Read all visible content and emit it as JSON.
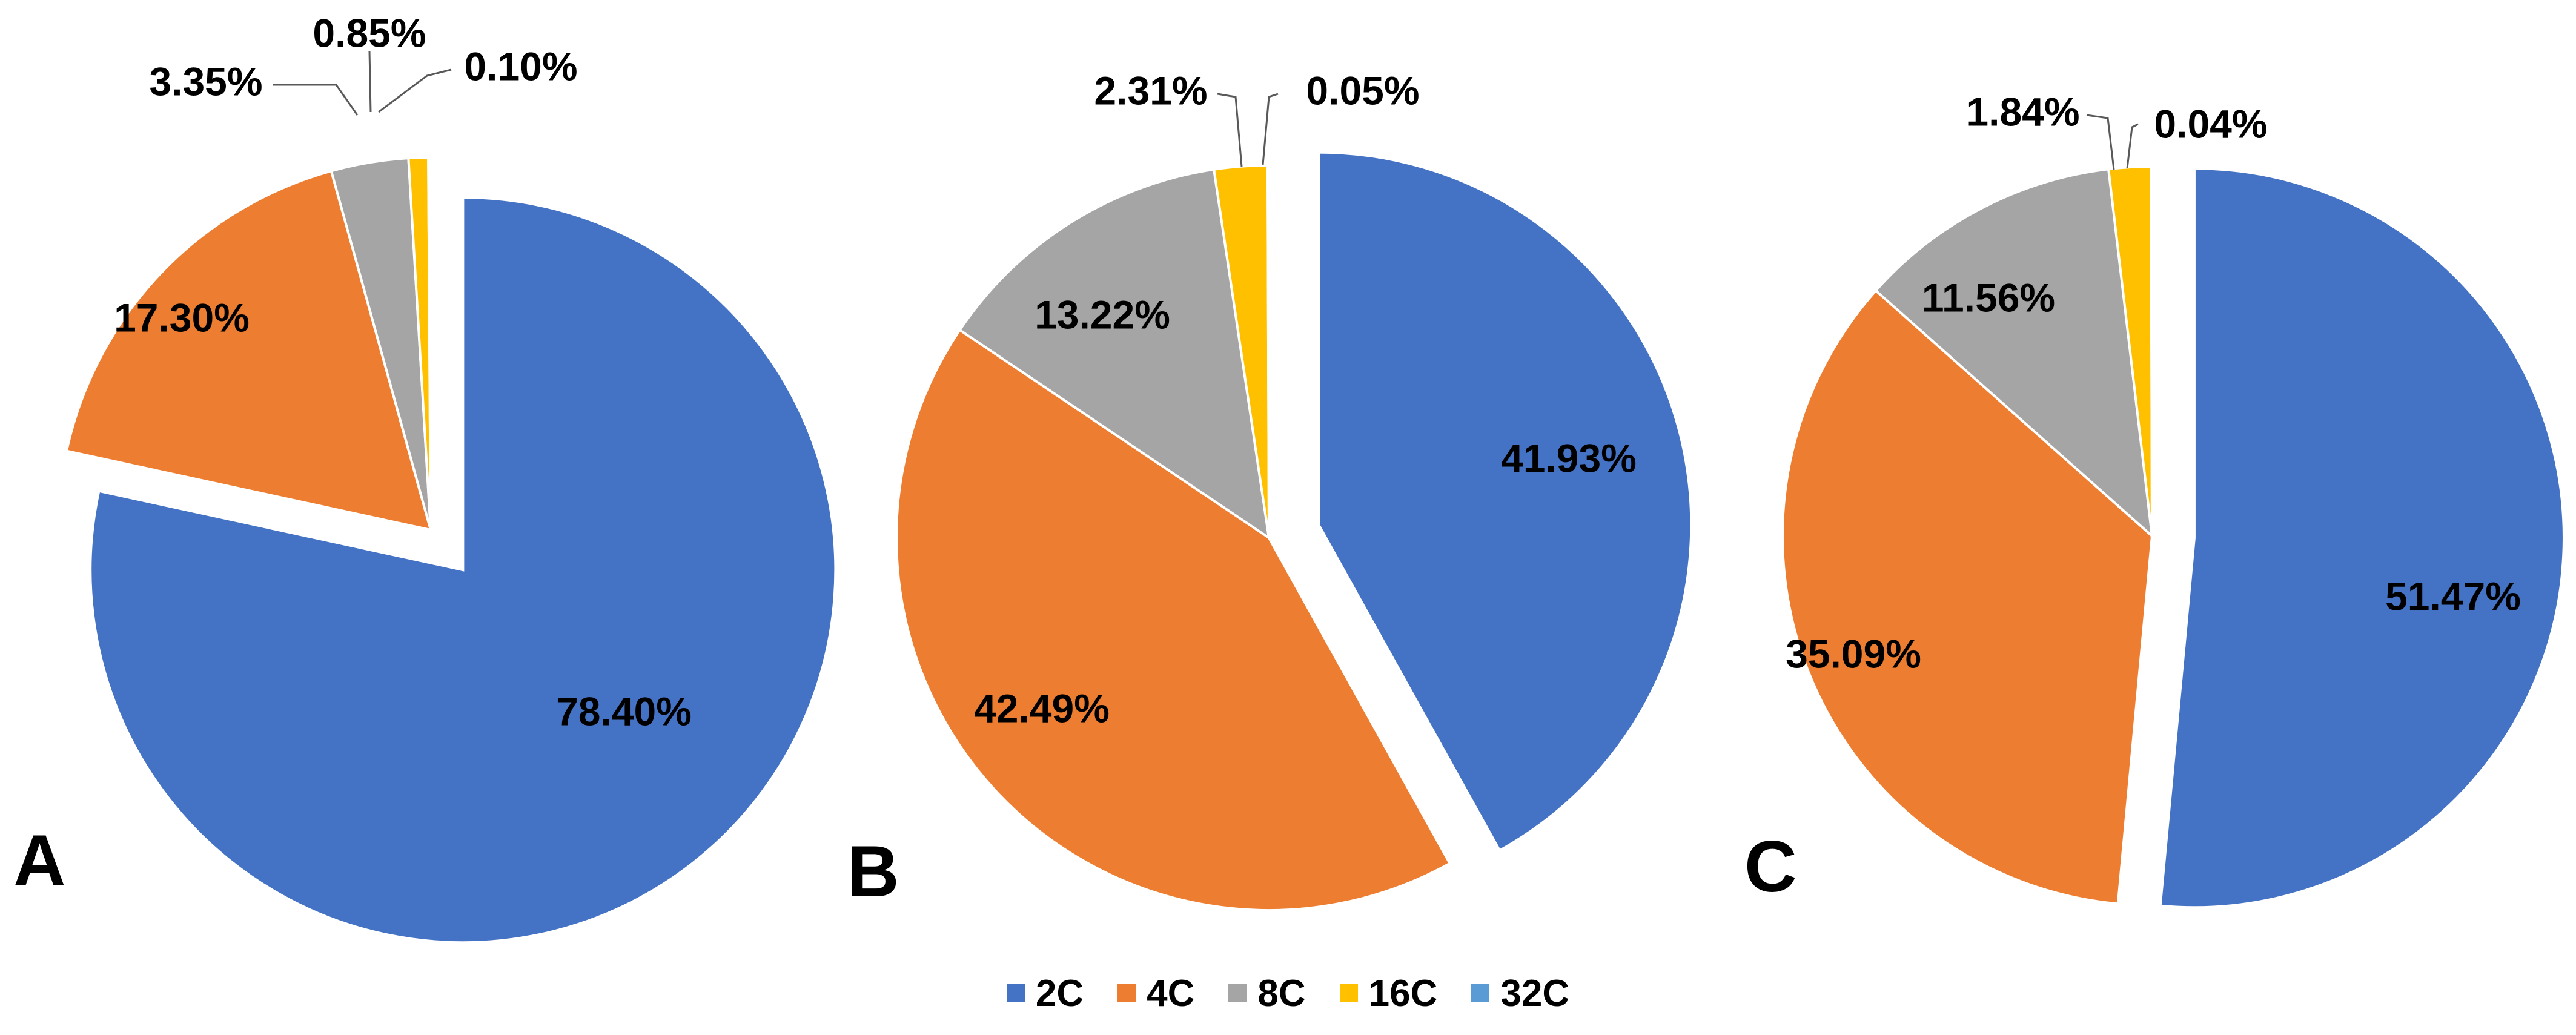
{
  "colors": {
    "2C": "#4472C4",
    "4C": "#ED7D31",
    "8C": "#A5A5A5",
    "16C": "#FFC000",
    "32C": "#5B9BD5"
  },
  "legend": [
    "2C",
    "4C",
    "8C",
    "16C",
    "32C"
  ],
  "chart_data": [
    {
      "type": "pie",
      "title": "A",
      "categories": [
        "2C",
        "4C",
        "8C",
        "16C",
        "32C"
      ],
      "values": [
        78.4,
        17.3,
        3.35,
        0.85,
        0.1
      ],
      "labels": [
        "78.40%",
        "17.30%",
        "3.35%",
        "0.85%",
        "0.10%"
      ],
      "exploded": "2C"
    },
    {
      "type": "pie",
      "title": "B",
      "categories": [
        "2C",
        "4C",
        "8C",
        "16C",
        "32C"
      ],
      "values": [
        41.93,
        42.49,
        13.22,
        2.31,
        0.05
      ],
      "labels": [
        "41.93%",
        "42.49%",
        "13.22%",
        "2.31%",
        "0.05%"
      ],
      "exploded": "2C"
    },
    {
      "type": "pie",
      "title": "C",
      "categories": [
        "2C",
        "4C",
        "8C",
        "16C",
        "32C"
      ],
      "values": [
        51.47,
        35.09,
        11.56,
        1.84,
        0.04
      ],
      "labels": [
        "51.47%",
        "35.09%",
        "11.56%",
        "1.84%",
        "0.04%"
      ],
      "exploded": "2C"
    }
  ]
}
